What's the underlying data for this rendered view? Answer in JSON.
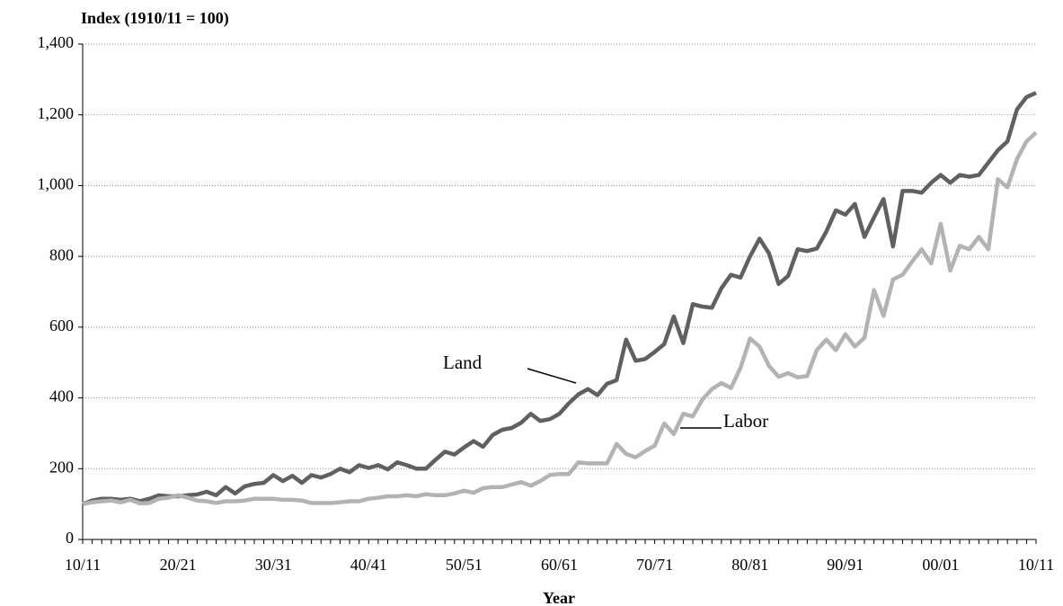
{
  "chart_data": {
    "type": "line",
    "y_label": "Index (1910/11 = 100)",
    "x_label": "Year",
    "categories": [
      "10/11",
      null,
      null,
      null,
      null,
      null,
      null,
      null,
      null,
      null,
      "20/21",
      null,
      null,
      null,
      null,
      null,
      null,
      null,
      null,
      null,
      "30/31",
      null,
      null,
      null,
      null,
      null,
      null,
      null,
      null,
      null,
      "40/41",
      null,
      null,
      null,
      null,
      null,
      null,
      null,
      null,
      null,
      "50/51",
      null,
      null,
      null,
      null,
      null,
      null,
      null,
      null,
      null,
      "60/61",
      null,
      null,
      null,
      null,
      null,
      null,
      null,
      null,
      null,
      "70/71",
      null,
      null,
      null,
      null,
      null,
      null,
      null,
      null,
      null,
      "80/81",
      null,
      null,
      null,
      null,
      null,
      null,
      null,
      null,
      null,
      "90/91",
      null,
      null,
      null,
      null,
      null,
      null,
      null,
      null,
      null,
      "00/01",
      null,
      null,
      null,
      null,
      null,
      null,
      null,
      null,
      null,
      "10/11"
    ],
    "series": [
      {
        "name": "Land",
        "color": "#606060",
        "values": [
          100,
          110,
          115,
          115,
          112,
          115,
          108,
          115,
          125,
          122,
          122,
          125,
          127,
          135,
          125,
          148,
          130,
          150,
          157,
          160,
          182,
          165,
          180,
          160,
          182,
          175,
          185,
          200,
          190,
          210,
          202,
          210,
          198,
          218,
          210,
          200,
          200,
          225,
          248,
          240,
          260,
          278,
          262,
          295,
          310,
          315,
          330,
          355,
          335,
          340,
          355,
          385,
          410,
          425,
          408,
          440,
          450,
          565,
          505,
          510,
          530,
          552,
          630,
          555,
          665,
          658,
          655,
          710,
          748,
          740,
          800,
          850,
          808,
          722,
          745,
          820,
          815,
          822,
          870,
          930,
          918,
          948,
          855,
          910,
          962,
          828,
          985,
          985,
          980,
          1008,
          1030,
          1008,
          1030,
          1025,
          1030,
          1065,
          1100,
          1125,
          1215,
          1250,
          1262
        ]
      },
      {
        "name": "Labor",
        "color": "#b3b3b3",
        "values": [
          100,
          105,
          108,
          110,
          105,
          112,
          102,
          103,
          115,
          118,
          125,
          118,
          110,
          108,
          103,
          108,
          108,
          110,
          115,
          115,
          115,
          112,
          112,
          110,
          103,
          103,
          103,
          105,
          108,
          108,
          115,
          118,
          122,
          122,
          125,
          122,
          128,
          125,
          125,
          130,
          138,
          132,
          145,
          148,
          148,
          155,
          162,
          152,
          165,
          182,
          185,
          185,
          218,
          215,
          215,
          215,
          270,
          242,
          232,
          250,
          265,
          328,
          298,
          355,
          348,
          395,
          425,
          442,
          428,
          485,
          568,
          545,
          490,
          460,
          470,
          458,
          462,
          535,
          565,
          535,
          580,
          545,
          570,
          705,
          632,
          735,
          748,
          785,
          820,
          780,
          892,
          760,
          830,
          820,
          855,
          820,
          1018,
          995,
          1075,
          1125,
          1150
        ]
      }
    ],
    "ylim": [
      0,
      1400
    ],
    "yticks": [
      0,
      200,
      400,
      600,
      800,
      {
        "value": 1000,
        "label": "1,000"
      },
      {
        "value": 1200,
        "label": "1,200"
      },
      {
        "value": 1400,
        "label": "1,400"
      }
    ],
    "grid": true
  }
}
